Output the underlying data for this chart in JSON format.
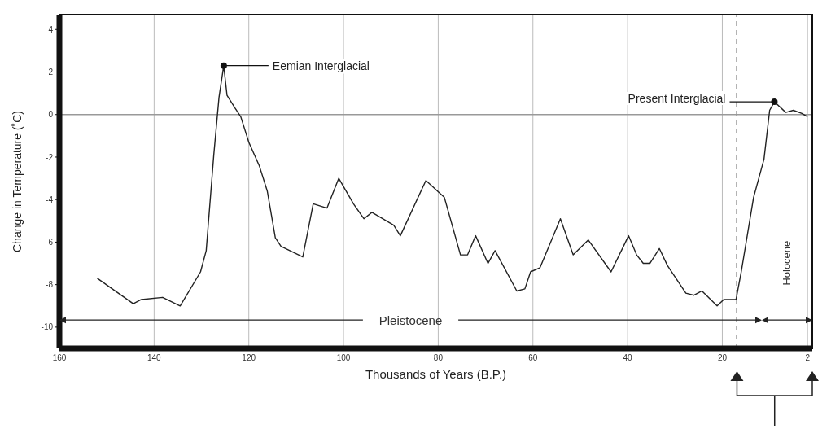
{
  "chart_data": {
    "type": "line",
    "xlabel": "Thousands of Years (B.P.)",
    "ylabel": "Change in Temperature (˚C)",
    "x": [
      152,
      144.4,
      142.7,
      138.2,
      134.5,
      130.2,
      129,
      127.4,
      126.3,
      125.3,
      124.6,
      122.9,
      121.7,
      120,
      117.8,
      116.1,
      114.4,
      113.2,
      108.6,
      106.4,
      103.5,
      101,
      97.9,
      95.7,
      94,
      89.4,
      88,
      82.6,
      78.7,
      75.3,
      73.8,
      72.1,
      69.5,
      68,
      63.4,
      61.7,
      60.5,
      58.5,
      54.2,
      51.5,
      48.3,
      43.5,
      39.8,
      38.1,
      36.7,
      35.3,
      33.3,
      31.6,
      27.7,
      26,
      24.3,
      21.1,
      19.7,
      17.1,
      16,
      13.4,
      11.2,
      10,
      9,
      6.6,
      5,
      3.2,
      2
    ],
    "series": [
      {
        "color": "#222222",
        "values": [
          -7.7,
          -8.9,
          -8.7,
          -8.6,
          -9.0,
          -7.4,
          -6.4,
          -1.9,
          0.8,
          2.3,
          0.9,
          0.3,
          -0.1,
          -1.3,
          -2.4,
          -3.6,
          -5.8,
          -6.2,
          -6.7,
          -4.2,
          -4.4,
          -3.0,
          -4.2,
          -4.9,
          -4.6,
          -5.2,
          -5.7,
          -3.1,
          -3.9,
          -6.6,
          -6.6,
          -5.7,
          -7.0,
          -6.4,
          -8.3,
          -8.2,
          -7.4,
          -7.2,
          -4.9,
          -6.6,
          -5.9,
          -7.4,
          -5.7,
          -6.6,
          -7.0,
          -7.0,
          -6.3,
          -7.1,
          -8.4,
          -8.5,
          -8.3,
          -9.0,
          -8.7,
          -8.7,
          -7.4,
          -3.9,
          -2.1,
          0.2,
          0.6,
          0.1,
          0.2,
          0.05,
          -0.1
        ]
      }
    ],
    "xlim": [
      160,
      1
    ],
    "xticks": [
      160,
      140,
      120,
      100,
      80,
      60,
      40,
      20,
      2
    ],
    "ylim": [
      -11,
      4.7
    ],
    "yticks": [
      4,
      2,
      0,
      -2,
      -4,
      -6,
      -8,
      -10
    ],
    "grid": "x",
    "marker": "none",
    "line_style": "solid",
    "ref_lines": [
      {
        "axis": "y",
        "value": 0,
        "color": "#999999",
        "line_style": "solid"
      },
      {
        "axis": "x",
        "value": 17,
        "color": "#999999",
        "line_style": "dashed"
      }
    ],
    "annotations": [
      {
        "text": "Eemian Interglacial",
        "x": 125.3,
        "y": 2.3
      },
      {
        "text": "Present Interglacial",
        "x": 9,
        "y": 0.6
      },
      "Pleistocene",
      "Holocene"
    ]
  }
}
